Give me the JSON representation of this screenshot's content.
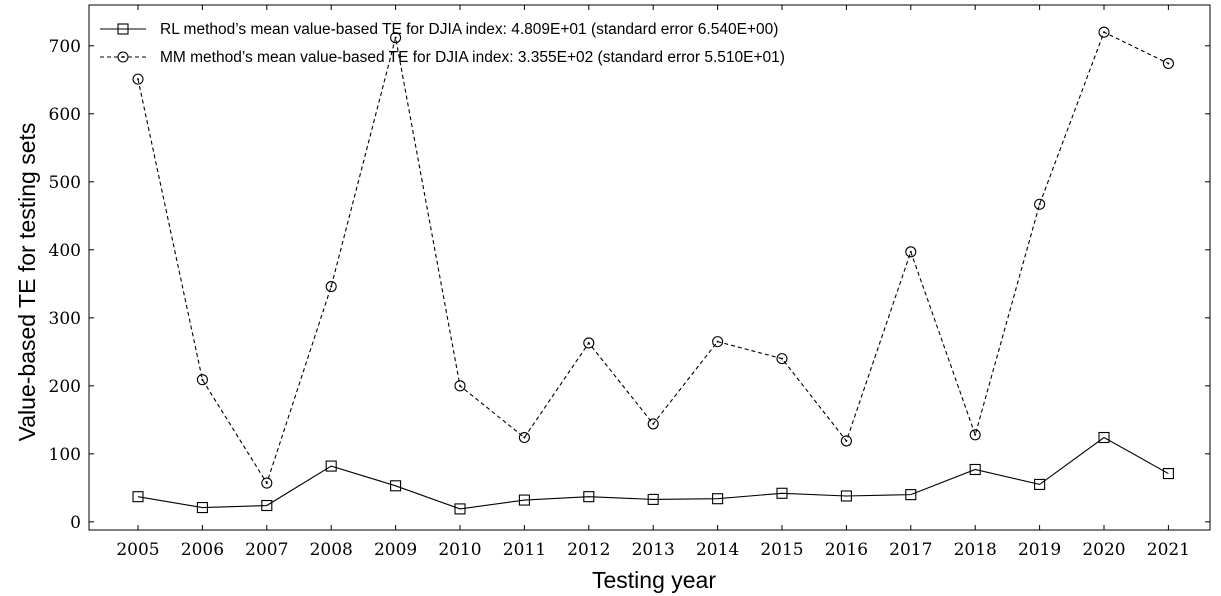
{
  "chart_data": {
    "type": "line",
    "xlabel": "Testing year",
    "ylabel": "Value-based TE for testing sets",
    "x": [
      "2005",
      "2006",
      "2007",
      "2008",
      "2009",
      "2010",
      "2011",
      "2012",
      "2013",
      "2014",
      "2015",
      "2016",
      "2017",
      "2018",
      "2019",
      "2020",
      "2021"
    ],
    "ylim": [
      -12,
      760
    ],
    "yticks": [
      0,
      100,
      200,
      300,
      400,
      500,
      600,
      700
    ],
    "grid": false,
    "legend_position": "top-left",
    "series": [
      {
        "name": "RL method’s mean value-based TE for DJIA index: 4.809E+01 (standard error 6.540E+00)",
        "marker": "square",
        "line_style": "solid",
        "color": "#000000",
        "values": [
          37,
          21,
          24,
          82,
          53,
          19,
          32,
          37,
          33,
          34,
          42,
          38,
          40,
          77,
          55,
          124,
          71
        ]
      },
      {
        "name": "MM method’s mean value-based TE for DJIA index: 3.355E+02 (standard error 5.510E+01)",
        "marker": "circle",
        "line_style": "dashed",
        "color": "#000000",
        "values": [
          651,
          209,
          57,
          346,
          712,
          200,
          124,
          263,
          144,
          265,
          240,
          119,
          397,
          128,
          467,
          720,
          674
        ]
      }
    ]
  }
}
